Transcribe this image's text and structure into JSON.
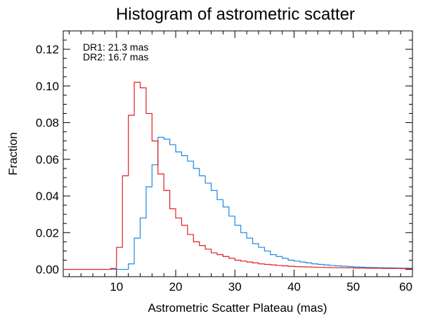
{
  "chart_data": {
    "type": "histogram",
    "title": "Histogram of astrometric scatter",
    "xlabel": "Astrometric Scatter Plateau (mas)",
    "ylabel": "Fraction",
    "xlim": [
      1,
      60
    ],
    "ylim": [
      -0.004,
      0.13
    ],
    "xticks": [
      "10",
      "20",
      "30",
      "40",
      "50",
      "60"
    ],
    "yticks": [
      "0.00",
      "0.02",
      "0.04",
      "0.06",
      "0.08",
      "0.10",
      "0.12"
    ],
    "grid": false,
    "legend_position": "top-left",
    "bin_width": 1,
    "bin_start": 1,
    "series": [
      {
        "name": "DR1: 21.3 mas",
        "color": "#1f86e0",
        "values": [
          0,
          0,
          0,
          0,
          0,
          0,
          0,
          0,
          0,
          0,
          0,
          0.003,
          0.017,
          0.028,
          0.045,
          0.057,
          0.072,
          0.071,
          0.068,
          0.064,
          0.062,
          0.059,
          0.055,
          0.051,
          0.047,
          0.043,
          0.038,
          0.034,
          0.029,
          0.024,
          0.02,
          0.017,
          0.014,
          0.012,
          0.01,
          0.008,
          0.007,
          0.006,
          0.005,
          0.0045,
          0.004,
          0.0035,
          0.003,
          0.0027,
          0.0024,
          0.0021,
          0.0019,
          0.0017,
          0.0015,
          0.0013,
          0.0012,
          0.0011,
          0.001,
          0.0009,
          0.0008,
          0.0008,
          0.0007,
          0.0006,
          0.0006
        ]
      },
      {
        "name": "DR2: 16.7 mas",
        "color": "#e61c1c",
        "values": [
          0,
          0,
          0,
          0,
          0,
          0,
          0,
          0,
          0.0005,
          0.012,
          0.051,
          0.084,
          0.102,
          0.099,
          0.085,
          0.07,
          0.052,
          0.043,
          0.033,
          0.028,
          0.024,
          0.019,
          0.015,
          0.013,
          0.011,
          0.009,
          0.008,
          0.007,
          0.006,
          0.005,
          0.0045,
          0.004,
          0.0035,
          0.003,
          0.0027,
          0.0024,
          0.0021,
          0.0019,
          0.0017,
          0.0015,
          0.0014,
          0.0013,
          0.0012,
          0.0011,
          0.001,
          0.0009,
          0.0009,
          0.0008,
          0.0008,
          0.0007,
          0.0007,
          0.0006,
          0.0006,
          0.0006,
          0.0005,
          0.0005,
          0.0005,
          0.0004,
          0.0004
        ]
      }
    ]
  }
}
